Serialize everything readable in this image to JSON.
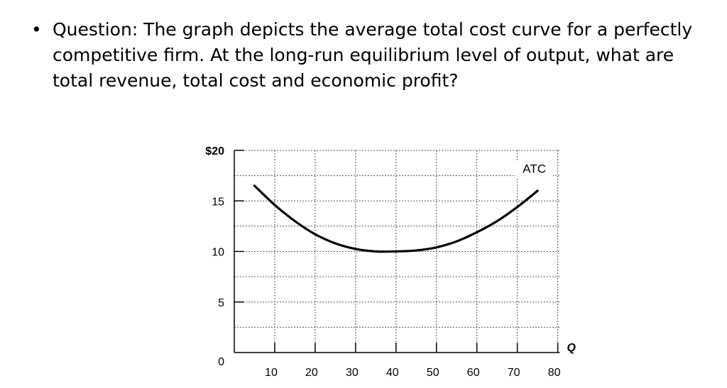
{
  "question": {
    "bullet": "•",
    "text": "Question: The graph depicts the average total cost curve for a perfectly competitive firm. At the long-run equilibrium level of output, what are total revenue, total cost and economic profit?"
  },
  "chart_data": {
    "type": "line",
    "title": "",
    "xlabel": "Q",
    "ylabel": "",
    "xlim": [
      0,
      85
    ],
    "ylim": [
      0,
      20
    ],
    "grid": true,
    "x_ticks": [
      "10",
      "20",
      "30",
      "40",
      "50",
      "60",
      "70",
      "80"
    ],
    "y_ticks": [
      "0",
      "5",
      "10",
      "15",
      "$20"
    ],
    "y_tick_values": [
      0,
      5,
      10,
      15,
      20
    ],
    "series": [
      {
        "name": "ATC",
        "x": [
          5,
          10,
          15,
          20,
          25,
          30,
          35,
          40,
          45,
          50,
          55,
          60,
          65,
          70,
          75
        ],
        "y": [
          16.5,
          14.6,
          13.0,
          11.7,
          10.8,
          10.25,
          10.0,
          10.0,
          10.1,
          10.4,
          11.0,
          11.9,
          13.0,
          14.4,
          16.0
        ]
      }
    ],
    "annotations": [
      {
        "text": "ATC"
      }
    ]
  }
}
